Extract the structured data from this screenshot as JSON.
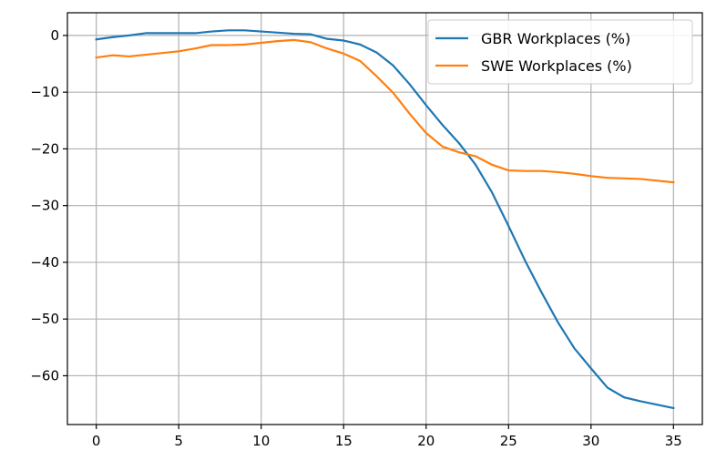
{
  "chart_data": {
    "type": "line",
    "title": "",
    "xlabel": "",
    "ylabel": "",
    "xlim": [
      -1.75,
      36.75
    ],
    "ylim": [
      -68.6,
      4.0
    ],
    "xticks": [
      0,
      5,
      10,
      15,
      20,
      25,
      30,
      35
    ],
    "yticks": [
      0,
      -10,
      -20,
      -30,
      -40,
      -50,
      -60
    ],
    "grid": true,
    "legend_position": "top-right",
    "x": [
      0,
      1,
      2,
      3,
      4,
      5,
      6,
      7,
      8,
      9,
      10,
      11,
      12,
      13,
      14,
      15,
      16,
      17,
      18,
      19,
      20,
      21,
      22,
      23,
      24,
      25,
      26,
      27,
      28,
      29,
      30,
      31,
      32,
      33,
      34,
      35
    ],
    "series": [
      {
        "name": "GBR Workplaces (%)",
        "color": "#1f77b4",
        "values": [
          -0.7,
          -0.3,
          0.0,
          0.4,
          0.4,
          0.4,
          0.4,
          0.7,
          0.9,
          0.9,
          0.7,
          0.5,
          0.3,
          0.2,
          -0.6,
          -0.9,
          -1.6,
          -3.0,
          -5.3,
          -8.6,
          -12.3,
          -15.8,
          -19.0,
          -22.8,
          -27.7,
          -33.6,
          -39.7,
          -45.3,
          -50.6,
          -55.2,
          -58.7,
          -62.1,
          -63.8,
          -64.5,
          -65.1,
          -65.7
        ]
      },
      {
        "name": "SWE Workplaces (%)",
        "color": "#ff7f0e",
        "values": [
          -3.9,
          -3.5,
          -3.7,
          -3.4,
          -3.1,
          -2.8,
          -2.3,
          -1.7,
          -1.7,
          -1.6,
          -1.3,
          -1.0,
          -0.8,
          -1.2,
          -2.3,
          -3.2,
          -4.5,
          -7.2,
          -10.1,
          -13.8,
          -17.2,
          -19.6,
          -20.6,
          -21.3,
          -22.8,
          -23.8,
          -23.9,
          -23.9,
          -24.1,
          -24.4,
          -24.8,
          -25.1,
          -25.2,
          -25.3,
          -25.6,
          -25.9
        ]
      }
    ]
  }
}
